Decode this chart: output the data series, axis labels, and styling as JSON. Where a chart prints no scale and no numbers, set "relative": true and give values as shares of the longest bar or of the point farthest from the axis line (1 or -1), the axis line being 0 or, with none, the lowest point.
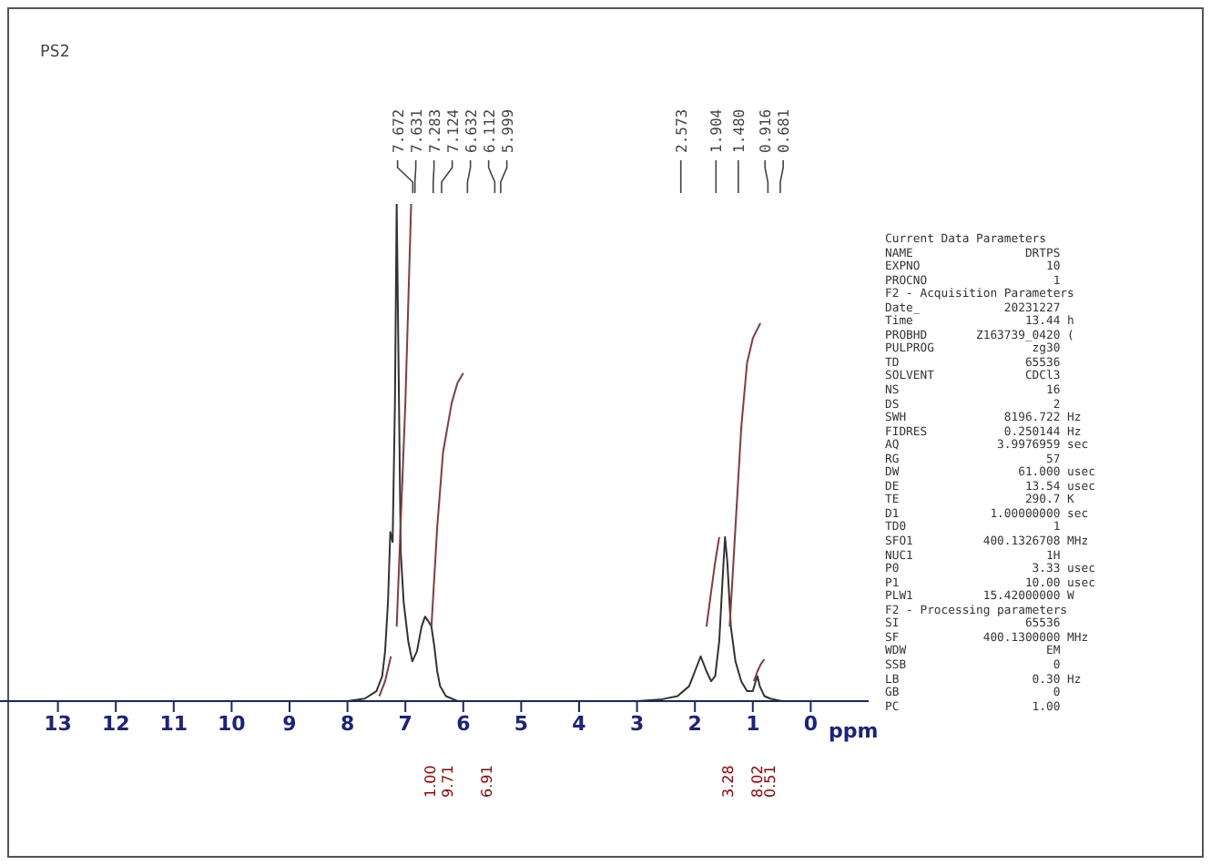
{
  "chart_data": {
    "type": "line",
    "title": "PS2",
    "xlabel": "ppm",
    "relative": true,
    "xlim": [
      14,
      -1
    ],
    "xticks": [
      13,
      12,
      11,
      10,
      9,
      8,
      7,
      6,
      5,
      4,
      3,
      2,
      1,
      0
    ],
    "series": [
      {
        "color": "#333333",
        "x": [
          14,
          10,
          8,
          7.7,
          7.5,
          7.4,
          7.35,
          7.3,
          7.26,
          7.22,
          7.18,
          7.15,
          7.12,
          7.08,
          7.03,
          6.95,
          6.88,
          6.8,
          6.72,
          6.66,
          6.6,
          6.55,
          6.5,
          6.45,
          6.4,
          6.3,
          6.1,
          5,
          3,
          2.6,
          2.3,
          2.1,
          2,
          1.9,
          1.8,
          1.72,
          1.65,
          1.58,
          1.52,
          1.48,
          1.44,
          1.38,
          1.3,
          1.2,
          1.1,
          1,
          0.95,
          0.92,
          0.88,
          0.8,
          0.7,
          0.5,
          -1
        ],
        "values": [
          0,
          0,
          0,
          0.005,
          0.02,
          0.05,
          0.1,
          0.2,
          0.34,
          0.32,
          0.6,
          1,
          0.7,
          0.3,
          0.2,
          0.12,
          0.08,
          0.1,
          0.15,
          0.17,
          0.16,
          0.15,
          0.11,
          0.06,
          0.03,
          0.01,
          0,
          0,
          0,
          0.003,
          0.01,
          0.03,
          0.06,
          0.09,
          0.06,
          0.04,
          0.05,
          0.12,
          0.25,
          0.33,
          0.28,
          0.15,
          0.08,
          0.04,
          0.02,
          0.02,
          0.04,
          0.05,
          0.03,
          0.01,
          0.005,
          0,
          0
        ]
      },
      {
        "color": "#8b3a3a",
        "x": [
          7.45,
          7.35,
          7.25
        ],
        "values": [
          0.01,
          0.04,
          0.09
        ]
      },
      {
        "color": "#8b3a3a",
        "x": [
          7.15,
          7.1,
          7.0,
          6.95,
          6.9
        ],
        "values": [
          0.15,
          0.3,
          0.6,
          0.8,
          1
        ]
      },
      {
        "color": "#8b3a3a",
        "x": [
          6.55,
          6.45,
          6.35,
          6.2,
          6.1,
          6.0
        ],
        "values": [
          0.15,
          0.35,
          0.5,
          0.6,
          0.64,
          0.66
        ]
      },
      {
        "color": "#8b3a3a",
        "x": [
          1.8,
          1.72,
          1.65,
          1.58
        ],
        "values": [
          0.15,
          0.22,
          0.28,
          0.33
        ]
      },
      {
        "color": "#8b3a3a",
        "x": [
          1.4,
          1.3,
          1.2,
          1.1,
          1.0,
          0.87
        ],
        "values": [
          0.15,
          0.35,
          0.55,
          0.68,
          0.73,
          0.76
        ]
      },
      {
        "color": "#8b3a3a",
        "x": [
          0.98,
          0.92,
          0.86,
          0.8
        ],
        "values": [
          0.04,
          0.06,
          0.075,
          0.084
        ]
      }
    ],
    "annotations": [
      "7.672",
      "7.631",
      "7.283",
      "7.124",
      "6.632",
      "6.112",
      "5.999",
      "2.573",
      "1.904",
      "1.480",
      "0.916",
      "0.681",
      "1.00",
      "9.71",
      "6.91",
      "3.28",
      "8.02",
      "0.51",
      "Current Data Parameters",
      "NAME                DRTPS",
      "EXPNO                  10",
      "PROCNO                  1",
      "F2 - Acquisition Parameters",
      "Date_            20231227",
      "Time                13.44 h",
      "PROBHD       Z163739_0420 (",
      "PULPROG              zg30",
      "TD                  65536",
      "SOLVENT             CDCl3",
      "NS                     16",
      "DS                      2",
      "SWH              8196.722 Hz",
      "FIDRES           0.250144 Hz",
      "AQ              3.9976959 sec",
      "RG                     57",
      "DW                 61.000 usec",
      "DE                  13.54 usec",
      "TE                  290.7 K",
      "D1             1.00000000 sec",
      "TD0                     1",
      "SFO1          400.1326708 MHz",
      "NUC1                   1H",
      "P0                   3.33 usec",
      "P1                  10.00 usec",
      "PLW1          15.42000000 W",
      "F2 - Processing parameters",
      "SI                  65536",
      "SF            400.1300000 MHz",
      "WDW                    EM",
      "SSB                     0",
      "LB                   0.30 Hz",
      "GB                      0",
      "PC                   1.00"
    ]
  }
}
